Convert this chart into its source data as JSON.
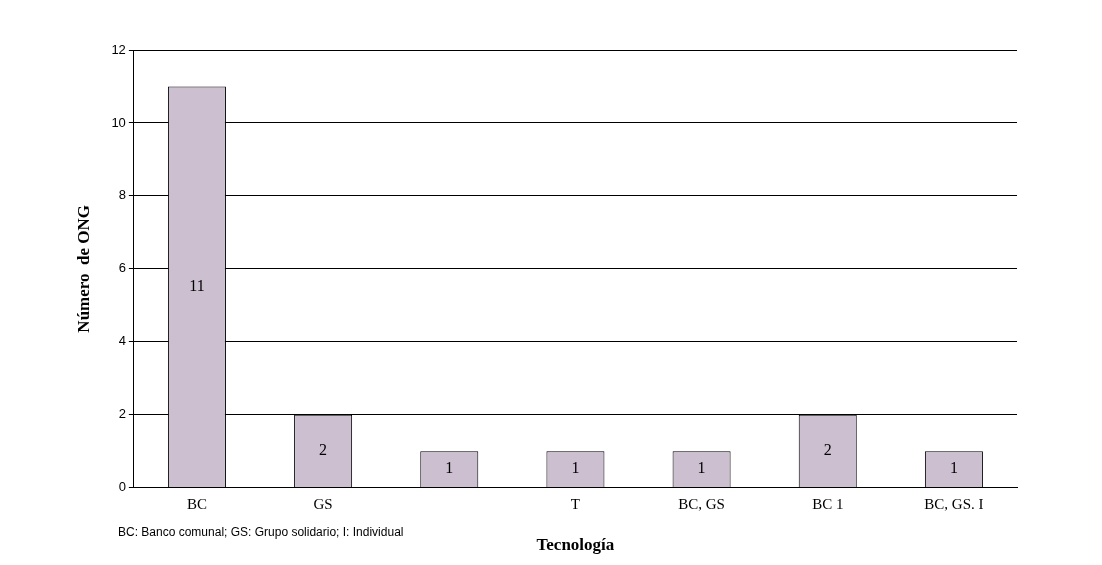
{
  "chart_data": {
    "type": "bar",
    "xlabel": "Tecnología",
    "ylabel": "Número  de ONG",
    "categories": [
      "BC",
      "GS",
      null,
      "T",
      "BC, GS",
      "BC 1",
      "BC, GS. I"
    ],
    "values": [
      11,
      2,
      1,
      1,
      1,
      2,
      1
    ],
    "color": "#ccc0d0",
    "ylim": [
      0,
      12
    ],
    "yticks": [
      0,
      2,
      4,
      6,
      8,
      10,
      12
    ],
    "grid": "y",
    "data_labels": true,
    "annotations": [
      "BC: Banco comunal; GS: Grupo solidario; I: Individual"
    ]
  }
}
